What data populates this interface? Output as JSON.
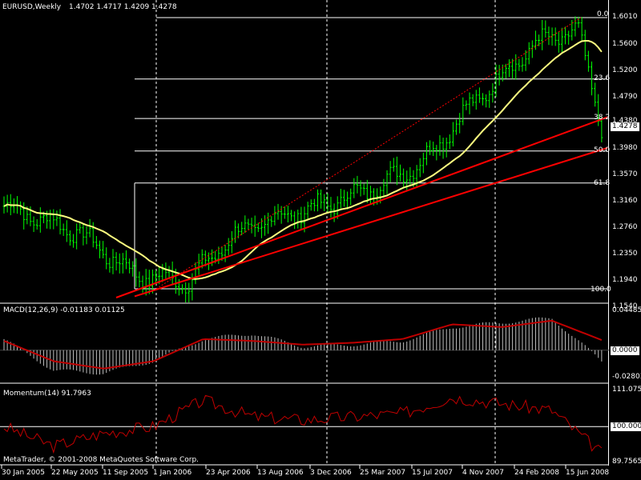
{
  "chart_header": {
    "symbol_label": "EURUSD,Weekly",
    "ohlc": "1.4702 1.4717 1.4209 1.4278"
  },
  "main_panel": {
    "price_axis_ticks": [
      "1.6010",
      "1.5600",
      "1.5200",
      "1.4790",
      "1.4380",
      "1.3980",
      "1.3570",
      "1.3160",
      "1.2760",
      "1.2350",
      "1.1940",
      "1.1540"
    ],
    "current_price": "1.4278",
    "fib_levels": [
      "0.0",
      "23.6",
      "38.2",
      "50.0",
      "61.8",
      "100.0"
    ]
  },
  "macd_panel": {
    "label": "MACD(12,26,9) -0.01183 0.01125",
    "axis_ticks": [
      "0.04485",
      "0.0000",
      "-0.02803"
    ]
  },
  "momentum_panel": {
    "label": "Momentum(14) 91.7963",
    "axis_ticks": [
      "111.0755",
      "100.0000",
      "89.7565"
    ]
  },
  "copyright": "MetaTrader, © 2001-2008 MetaQuotes Software Corp.",
  "time_axis": [
    "30 Jan 2005",
    "22 May 2005",
    "11 Sep 2005",
    "1 Jan 2006",
    "23 Apr 2006",
    "13 Aug 2006",
    "3 Dec 2006",
    "25 Mar 2007",
    "15 Jul 2007",
    "4 Nov 2007",
    "24 Feb 2008",
    "15 Jun 2008"
  ],
  "colors": {
    "candle": "#00ff00",
    "ma": "#ffff80",
    "trendline": "#ff0000",
    "macd_signal": "#c00000",
    "macd_hist": "#c0c0c0",
    "momentum": "#c00000",
    "grid": "#ffffff"
  },
  "chart_data": [
    {
      "type": "line",
      "title": "EURUSD,Weekly",
      "series": [
        {
          "name": "EURUSD",
          "x": [
            "30 Jan 2005",
            "22 May 2005",
            "11 Sep 2005",
            "1 Jan 2006",
            "23 Apr 2006",
            "13 Aug 2006",
            "3 Dec 2006",
            "25 Mar 2007",
            "15 Jul 2007",
            "4 Nov 2007",
            "24 Feb 2008",
            "15 Jun 2008",
            "15 Jun 2008"
          ],
          "values": [
            1.3,
            1.26,
            1.19,
            1.18,
            1.25,
            1.28,
            1.3,
            1.33,
            1.37,
            1.47,
            1.56,
            1.58,
            1.4278
          ]
        }
      ],
      "ylim": [
        1.154,
        1.601
      ]
    },
    {
      "type": "bar",
      "title": "MACD(12,26,9) -0.01183 0.01125",
      "series": [
        {
          "name": "MACD",
          "values": [
            0.012,
            -0.022,
            -0.025,
            -0.012,
            0.012,
            0.018,
            0.004,
            0.006,
            0.01,
            0.025,
            0.03,
            0.035,
            -0.012
          ]
        },
        {
          "name": "Signal",
          "values": [
            0.01,
            -0.012,
            -0.02,
            -0.012,
            0.012,
            0.01,
            0.006,
            0.008,
            0.012,
            0.028,
            0.025,
            0.032,
            0.011
          ]
        }
      ],
      "ylim": [
        -0.02803,
        0.04485
      ]
    },
    {
      "type": "line",
      "title": "Momentum(14) 91.7963",
      "series": [
        {
          "name": "Momentum",
          "values": [
            100,
            94,
            98,
            100,
            108,
            103,
            102,
            103,
            104,
            109,
            107,
            105,
            91.7963
          ]
        }
      ],
      "ylim": [
        89.7565,
        111.0755
      ]
    }
  ]
}
